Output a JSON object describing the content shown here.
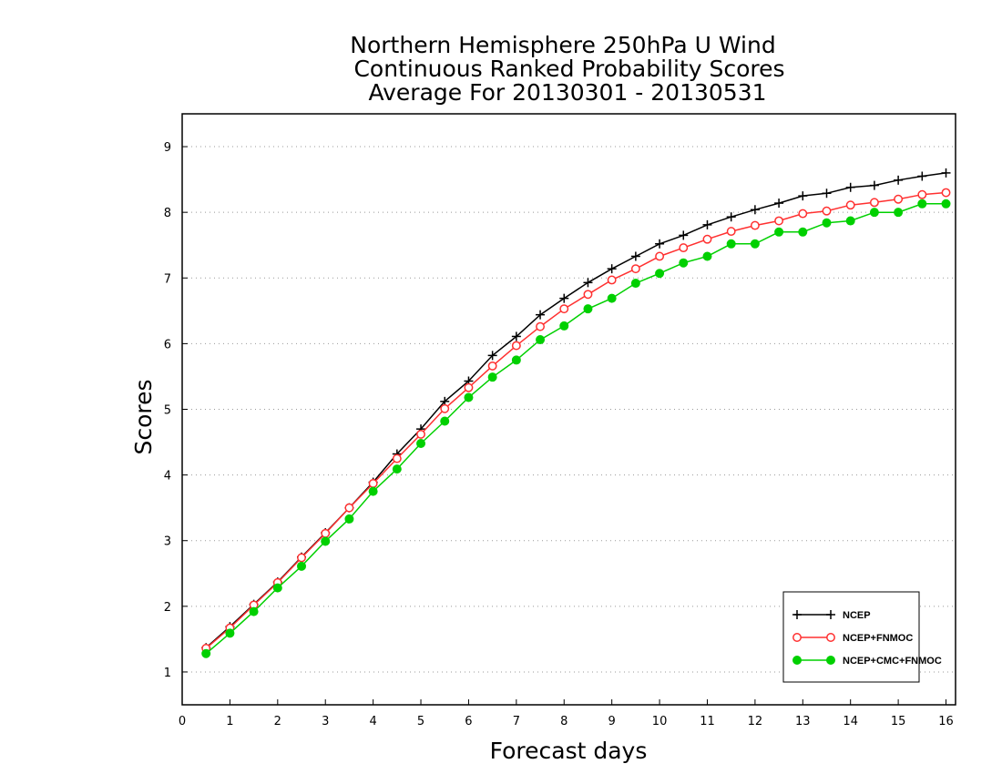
{
  "chart_data": {
    "type": "line",
    "title_lines": [
      "Northern Hemisphere 250hPa U Wind",
      "Continuous Ranked Probability Scores",
      "Average For 20130301 - 20130531"
    ],
    "xlabel": "Forecast days",
    "ylabel": "Scores",
    "xlim": [
      0,
      16.2
    ],
    "ylim": [
      0.5,
      9.5
    ],
    "xticks": [
      0,
      1,
      2,
      3,
      4,
      5,
      6,
      7,
      8,
      9,
      10,
      11,
      12,
      13,
      14,
      15,
      16
    ],
    "yticks": [
      1,
      2,
      3,
      4,
      5,
      6,
      7,
      8,
      9
    ],
    "grid": "horizontal dotted",
    "legend_position": "bottom-right",
    "x": [
      0.5,
      1,
      1.5,
      2,
      2.5,
      3,
      3.5,
      4,
      4.5,
      5,
      5.5,
      6,
      6.5,
      7,
      7.5,
      8,
      8.5,
      9,
      9.5,
      10,
      10.5,
      11,
      11.5,
      12,
      12.5,
      13,
      13.5,
      14,
      14.5,
      15,
      15.5,
      16
    ],
    "series": [
      {
        "name": "NCEP",
        "color": "#000000",
        "marker": "plus",
        "values": [
          1.37,
          1.69,
          2.03,
          2.37,
          2.75,
          3.12,
          3.5,
          3.89,
          4.32,
          4.7,
          5.12,
          5.43,
          5.82,
          6.11,
          6.44,
          6.69,
          6.93,
          7.14,
          7.33,
          7.52,
          7.65,
          7.81,
          7.93,
          8.04,
          8.14,
          8.25,
          8.29,
          8.38,
          8.41,
          8.49,
          8.55,
          8.6
        ]
      },
      {
        "name": "NCEP+FNMOC",
        "color": "#ff3030",
        "marker": "open-circle",
        "values": [
          1.36,
          1.67,
          2.02,
          2.36,
          2.74,
          3.11,
          3.5,
          3.87,
          4.25,
          4.62,
          5.01,
          5.33,
          5.66,
          5.97,
          6.26,
          6.53,
          6.75,
          6.97,
          7.14,
          7.33,
          7.46,
          7.59,
          7.71,
          7.8,
          7.87,
          7.98,
          8.02,
          8.11,
          8.15,
          8.2,
          8.27,
          8.3
        ]
      },
      {
        "name": "NCEP+CMC+FNMOC",
        "color": "#00d000",
        "marker": "filled-circle",
        "values": [
          1.28,
          1.59,
          1.92,
          2.28,
          2.61,
          2.99,
          3.33,
          3.75,
          4.09,
          4.48,
          4.82,
          5.18,
          5.49,
          5.75,
          6.06,
          6.27,
          6.53,
          6.69,
          6.92,
          7.07,
          7.23,
          7.33,
          7.52,
          7.52,
          7.7,
          7.7,
          7.84,
          7.87,
          8.0,
          8.0,
          8.13,
          8.13
        ]
      }
    ]
  }
}
